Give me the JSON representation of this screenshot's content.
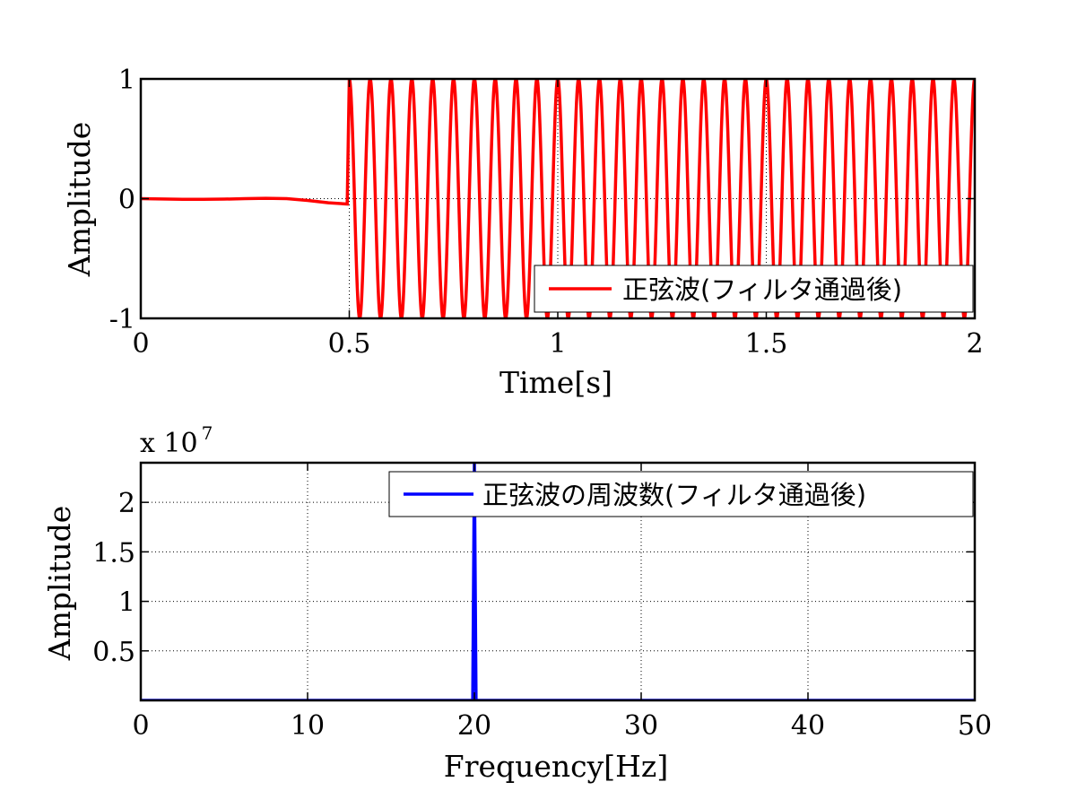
{
  "chart_data": [
    {
      "type": "line",
      "xlabel": "Time[s]",
      "ylabel": "Amplitude",
      "xlim": [
        0,
        2
      ],
      "ylim": [
        -1,
        1
      ],
      "xticks": [
        0,
        0.5,
        1,
        1.5,
        2
      ],
      "xtick_labels": [
        "0",
        "0.5",
        "1",
        "1.5",
        "2"
      ],
      "yticks": [
        -1,
        0,
        1
      ],
      "ytick_labels": [
        "-1",
        "0",
        "1"
      ],
      "grid": "dotted",
      "legend_position": "bottom-right",
      "series": [
        {
          "name": "正弦波(フィルタ通過後)",
          "color": "#ff0000",
          "x": [
            0,
            0.05,
            0.1,
            0.15,
            0.2,
            0.25,
            0.3,
            0.35,
            0.4,
            0.45,
            0.495,
            0.5,
            2
          ],
          "y": [
            0,
            -0.003,
            -0.006,
            -0.006,
            -0.004,
            0.0,
            0.003,
            0.0,
            -0.015,
            -0.035,
            -0.045,
            1,
            1
          ],
          "description_after_0.5s": "sinusoid, frequency 20 Hz, amplitude 1"
        }
      ]
    },
    {
      "type": "line",
      "xlabel": "Frequency[Hz]",
      "ylabel": "Amplitude",
      "xlim": [
        0,
        50
      ],
      "ylim": [
        0,
        2.4
      ],
      "xticks": [
        0,
        10,
        20,
        30,
        40,
        50
      ],
      "xtick_labels": [
        "0",
        "10",
        "20",
        "30",
        "40",
        "50"
      ],
      "yticks": [
        0.5,
        1,
        1.5,
        2
      ],
      "ytick_labels": [
        "0.5",
        "1",
        "1.5",
        "2"
      ],
      "y_multiplier_base": "x 10",
      "y_multiplier_exponent": "7",
      "grid": "dotted",
      "legend_position": "top-right",
      "series": [
        {
          "name": "正弦波の周波数(フィルタ通過後)",
          "color": "#0000ff",
          "x": [
            0,
            19.9,
            20,
            20.1,
            50
          ],
          "y": [
            0,
            0,
            2.4,
            0,
            0
          ]
        }
      ]
    }
  ]
}
